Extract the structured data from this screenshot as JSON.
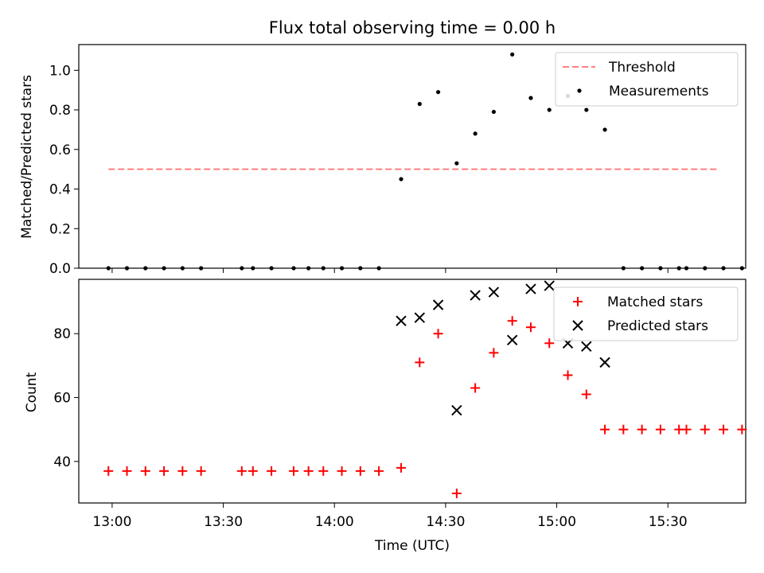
{
  "chart_data": [
    {
      "type": "scatter",
      "title": "Flux total observing time = 0.00 h",
      "xlabel": "",
      "ylabel": "Matched/Predicted stars",
      "xlim": [
        "12:51",
        "15:51"
      ],
      "ylim": [
        0,
        1.13
      ],
      "yticks": [
        0.0,
        0.2,
        0.4,
        0.6,
        0.8,
        1.0
      ],
      "ytick_labels": [
        "0.0",
        "0.2",
        "0.4",
        "0.6",
        "0.8",
        "1.0"
      ],
      "legend_position": "top-right",
      "legend": [
        "Threshold",
        "Measurements"
      ],
      "threshold": {
        "value": 0.5,
        "x": [
          "12:59",
          "15:44"
        ],
        "color": "#ff7f7f"
      },
      "series": [
        {
          "name": "Measurements",
          "marker": "dot",
          "color": "#000000",
          "x": [
            "12:59",
            "13:04",
            "13:09",
            "13:14",
            "13:19",
            "13:24",
            "13:35",
            "13:38",
            "13:43",
            "13:49",
            "13:53",
            "13:57",
            "14:02",
            "14:07",
            "14:12",
            "14:18",
            "14:23",
            "14:28",
            "14:33",
            "14:38",
            "14:43",
            "14:48",
            "14:53",
            "14:58",
            "15:03",
            "15:08",
            "15:13",
            "15:18",
            "15:23",
            "15:28",
            "15:33",
            "15:35",
            "15:40",
            "15:45",
            "15:50"
          ],
          "y": [
            0,
            0,
            0,
            0,
            0,
            0,
            0,
            0,
            0,
            0,
            0,
            0,
            0,
            0,
            0,
            0.45,
            0.83,
            0.89,
            0.53,
            0.68,
            0.79,
            1.08,
            0.86,
            0.8,
            0.87,
            0.8,
            0.7,
            0,
            0,
            0,
            0,
            0,
            0,
            0,
            0
          ]
        }
      ]
    },
    {
      "type": "scatter",
      "title": "",
      "xlabel": "Time (UTC)",
      "ylabel": "Count",
      "xlim": [
        "12:51",
        "15:51"
      ],
      "ylim": [
        27,
        97
      ],
      "xticks": [
        "13:00",
        "13:30",
        "14:00",
        "14:30",
        "15:00",
        "15:30"
      ],
      "yticks": [
        40,
        60,
        80
      ],
      "ytick_labels": [
        "40",
        "60",
        "80"
      ],
      "legend_position": "top-right",
      "legend": [
        "Matched stars",
        "Predicted stars"
      ],
      "series": [
        {
          "name": "Matched stars",
          "marker": "plus",
          "color": "#ff0000",
          "x": [
            "12:59",
            "13:04",
            "13:09",
            "13:14",
            "13:19",
            "13:24",
            "13:35",
            "13:38",
            "13:43",
            "13:49",
            "13:53",
            "13:57",
            "14:02",
            "14:07",
            "14:12",
            "14:18",
            "14:23",
            "14:28",
            "14:33",
            "14:38",
            "14:43",
            "14:48",
            "14:53",
            "14:58",
            "15:03",
            "15:08",
            "15:13",
            "15:18",
            "15:23",
            "15:28",
            "15:33",
            "15:35",
            "15:40",
            "15:45",
            "15:50"
          ],
          "y": [
            37,
            37,
            37,
            37,
            37,
            37,
            37,
            37,
            37,
            37,
            37,
            37,
            37,
            37,
            37,
            38,
            71,
            80,
            30,
            63,
            74,
            84,
            82,
            77,
            67,
            61,
            50,
            50,
            50,
            50,
            50,
            50,
            50,
            50,
            50
          ]
        },
        {
          "name": "Predicted stars",
          "marker": "x",
          "color": "#000000",
          "x": [
            "14:18",
            "14:23",
            "14:28",
            "14:33",
            "14:38",
            "14:43",
            "14:48",
            "14:53",
            "14:58",
            "15:03",
            "15:08",
            "15:13"
          ],
          "y": [
            84,
            85,
            89,
            56,
            92,
            93,
            78,
            94,
            95,
            77,
            76,
            71
          ]
        }
      ]
    }
  ]
}
